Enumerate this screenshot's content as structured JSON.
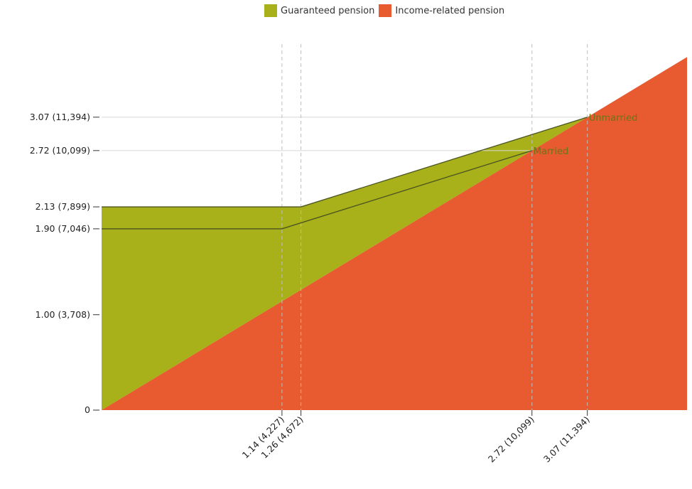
{
  "colors": {
    "guaranteed": "#a8b01a",
    "income_related": "#e85a30",
    "curve": "#4a5420",
    "label_text": "#6b7518"
  },
  "chart_data": {
    "type": "area",
    "title": "",
    "xlabel": "",
    "ylabel": "",
    "xlim": [
      0,
      3.7
    ],
    "ylim": [
      0,
      4.0
    ],
    "legend": {
      "placement": "top-center",
      "items": [
        {
          "label": "Guaranteed pension",
          "color": "#a8b01a"
        },
        {
          "label": "Income-related pension",
          "color": "#e85a30"
        }
      ]
    },
    "y_ticks": [
      {
        "value": 0,
        "label": "0"
      },
      {
        "value": 1.0,
        "label": "1.00 (3,708)"
      },
      {
        "value": 1.9,
        "label": "1.90 (7,046)"
      },
      {
        "value": 2.13,
        "label": "2.13 (7,899)"
      },
      {
        "value": 2.72,
        "label": "2.72 (10,099)"
      },
      {
        "value": 3.07,
        "label": "3.07 (11,394)"
      }
    ],
    "x_ticks": [
      {
        "value": 1.14,
        "label": "1.14 (4,227)"
      },
      {
        "value": 1.26,
        "label": "1.26 (4,672)"
      },
      {
        "value": 2.72,
        "label": "2.72 (10,099)"
      },
      {
        "value": 3.07,
        "label": "3.07 (11,394)"
      }
    ],
    "series": [
      {
        "name": "Income-related pension",
        "x": [
          0,
          3.7
        ],
        "y": [
          0,
          3.7
        ]
      },
      {
        "name": "Unmarried",
        "x": [
          0,
          1.26,
          3.07
        ],
        "y": [
          2.13,
          2.13,
          3.07
        ]
      },
      {
        "name": "Married",
        "x": [
          0,
          1.14,
          2.72
        ],
        "y": [
          1.9,
          1.9,
          2.72
        ]
      }
    ],
    "annotations": [
      {
        "text": "Unmarried",
        "x": 3.07,
        "y": 3.07
      },
      {
        "text": "Married",
        "x": 2.72,
        "y": 2.72
      }
    ]
  }
}
